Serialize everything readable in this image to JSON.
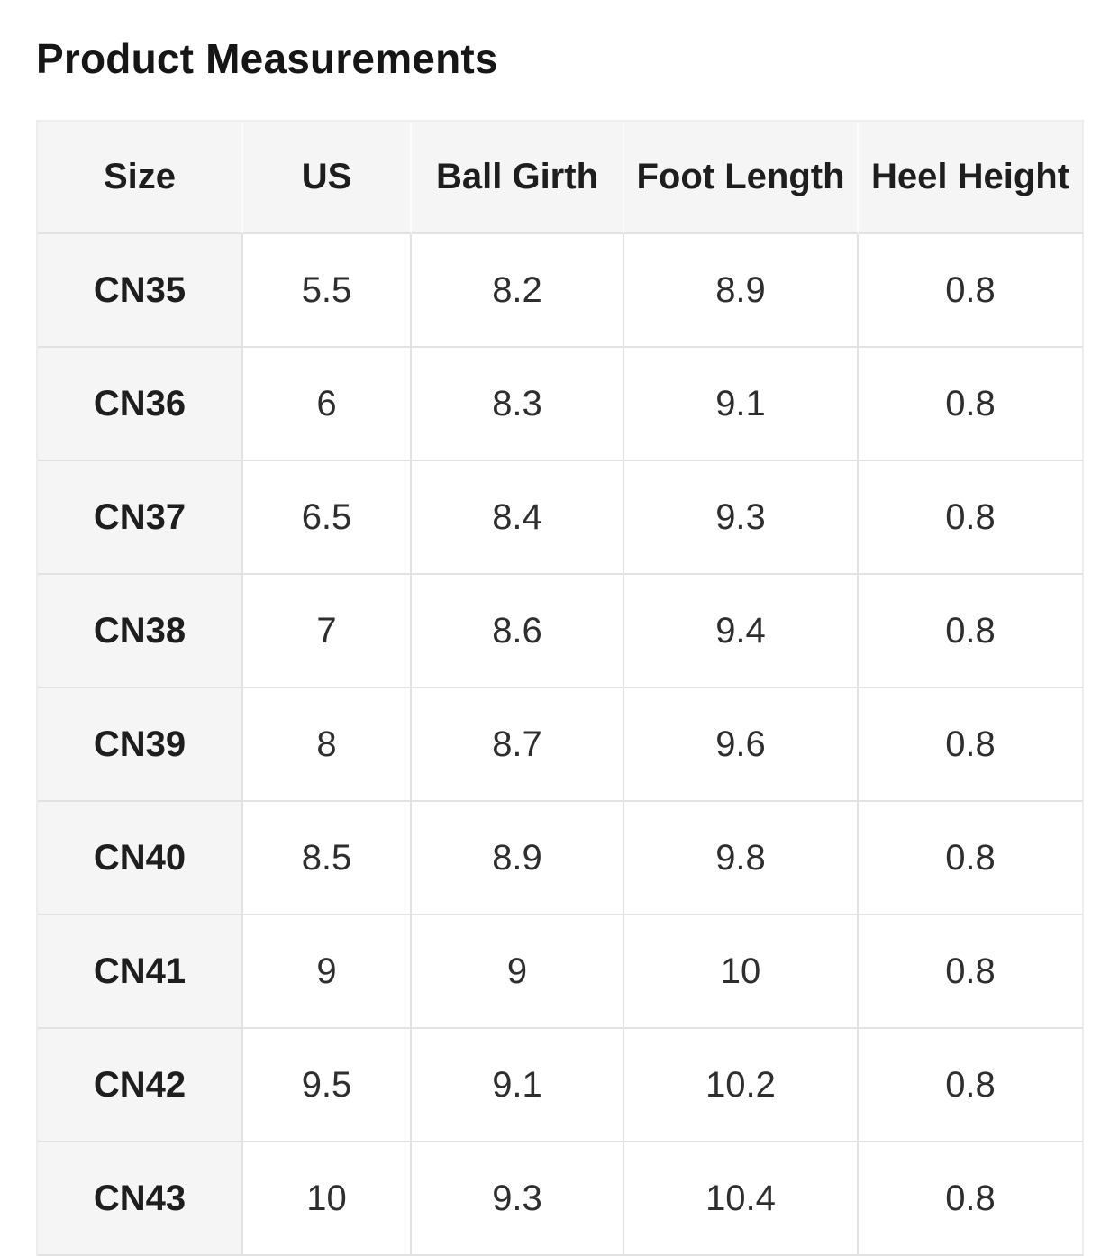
{
  "title": "Product Measurements",
  "colors": {
    "page_bg": "#ffffff",
    "cell_gray": "#f5f5f5",
    "grid_line": "#e2e2e2",
    "header_divider": "#fbfbfb",
    "heading_text": "#161616",
    "label_text": "#1e1e1e",
    "value_text": "#2e2e2e"
  },
  "table": {
    "columns": [
      "Size",
      "US",
      "Ball Girth",
      "Foot Length",
      "Heel Height"
    ],
    "rows": [
      {
        "size": "CN35",
        "values": [
          "5.5",
          "8.2",
          "8.9",
          "0.8"
        ]
      },
      {
        "size": "CN36",
        "values": [
          "6",
          "8.3",
          "9.1",
          "0.8"
        ]
      },
      {
        "size": "CN37",
        "values": [
          "6.5",
          "8.4",
          "9.3",
          "0.8"
        ]
      },
      {
        "size": "CN38",
        "values": [
          "7",
          "8.6",
          "9.4",
          "0.8"
        ]
      },
      {
        "size": "CN39",
        "values": [
          "8",
          "8.7",
          "9.6",
          "0.8"
        ]
      },
      {
        "size": "CN40",
        "values": [
          "8.5",
          "8.9",
          "9.8",
          "0.8"
        ]
      },
      {
        "size": "CN41",
        "values": [
          "9",
          "9",
          "10",
          "0.8"
        ]
      },
      {
        "size": "CN42",
        "values": [
          "9.5",
          "9.1",
          "10.2",
          "0.8"
        ]
      },
      {
        "size": "CN43",
        "values": [
          "10",
          "9.3",
          "10.4",
          "0.8"
        ]
      }
    ]
  }
}
